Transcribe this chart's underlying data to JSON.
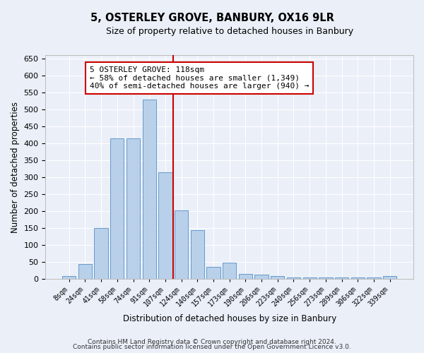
{
  "title1": "5, OSTERLEY GROVE, BANBURY, OX16 9LR",
  "title2": "Size of property relative to detached houses in Banbury",
  "xlabel": "Distribution of detached houses by size in Banbury",
  "ylabel": "Number of detached properties",
  "categories": [
    "8sqm",
    "24sqm",
    "41sqm",
    "58sqm",
    "74sqm",
    "91sqm",
    "107sqm",
    "124sqm",
    "140sqm",
    "157sqm",
    "173sqm",
    "190sqm",
    "206sqm",
    "223sqm",
    "240sqm",
    "256sqm",
    "273sqm",
    "289sqm",
    "306sqm",
    "322sqm",
    "339sqm"
  ],
  "values": [
    8,
    45,
    150,
    415,
    415,
    530,
    315,
    203,
    143,
    35,
    48,
    15,
    13,
    8,
    5,
    5,
    5,
    5,
    5,
    5,
    8
  ],
  "bar_color": "#b8d0ea",
  "bar_edge_color": "#6699cc",
  "vline_color": "#cc0000",
  "annotation_text": "5 OSTERLEY GROVE: 118sqm\n← 58% of detached houses are smaller (1,349)\n40% of semi-detached houses are larger (940) →",
  "annotation_box_color": "#ffffff",
  "annotation_box_edge_color": "#cc0000",
  "ylim": [
    0,
    660
  ],
  "yticks": [
    0,
    50,
    100,
    150,
    200,
    250,
    300,
    350,
    400,
    450,
    500,
    550,
    600,
    650
  ],
  "footer1": "Contains HM Land Registry data © Crown copyright and database right 2024.",
  "footer2": "Contains public sector information licensed under the Open Government Licence v3.0.",
  "bg_color": "#eaeff8",
  "grid_color": "#ffffff"
}
